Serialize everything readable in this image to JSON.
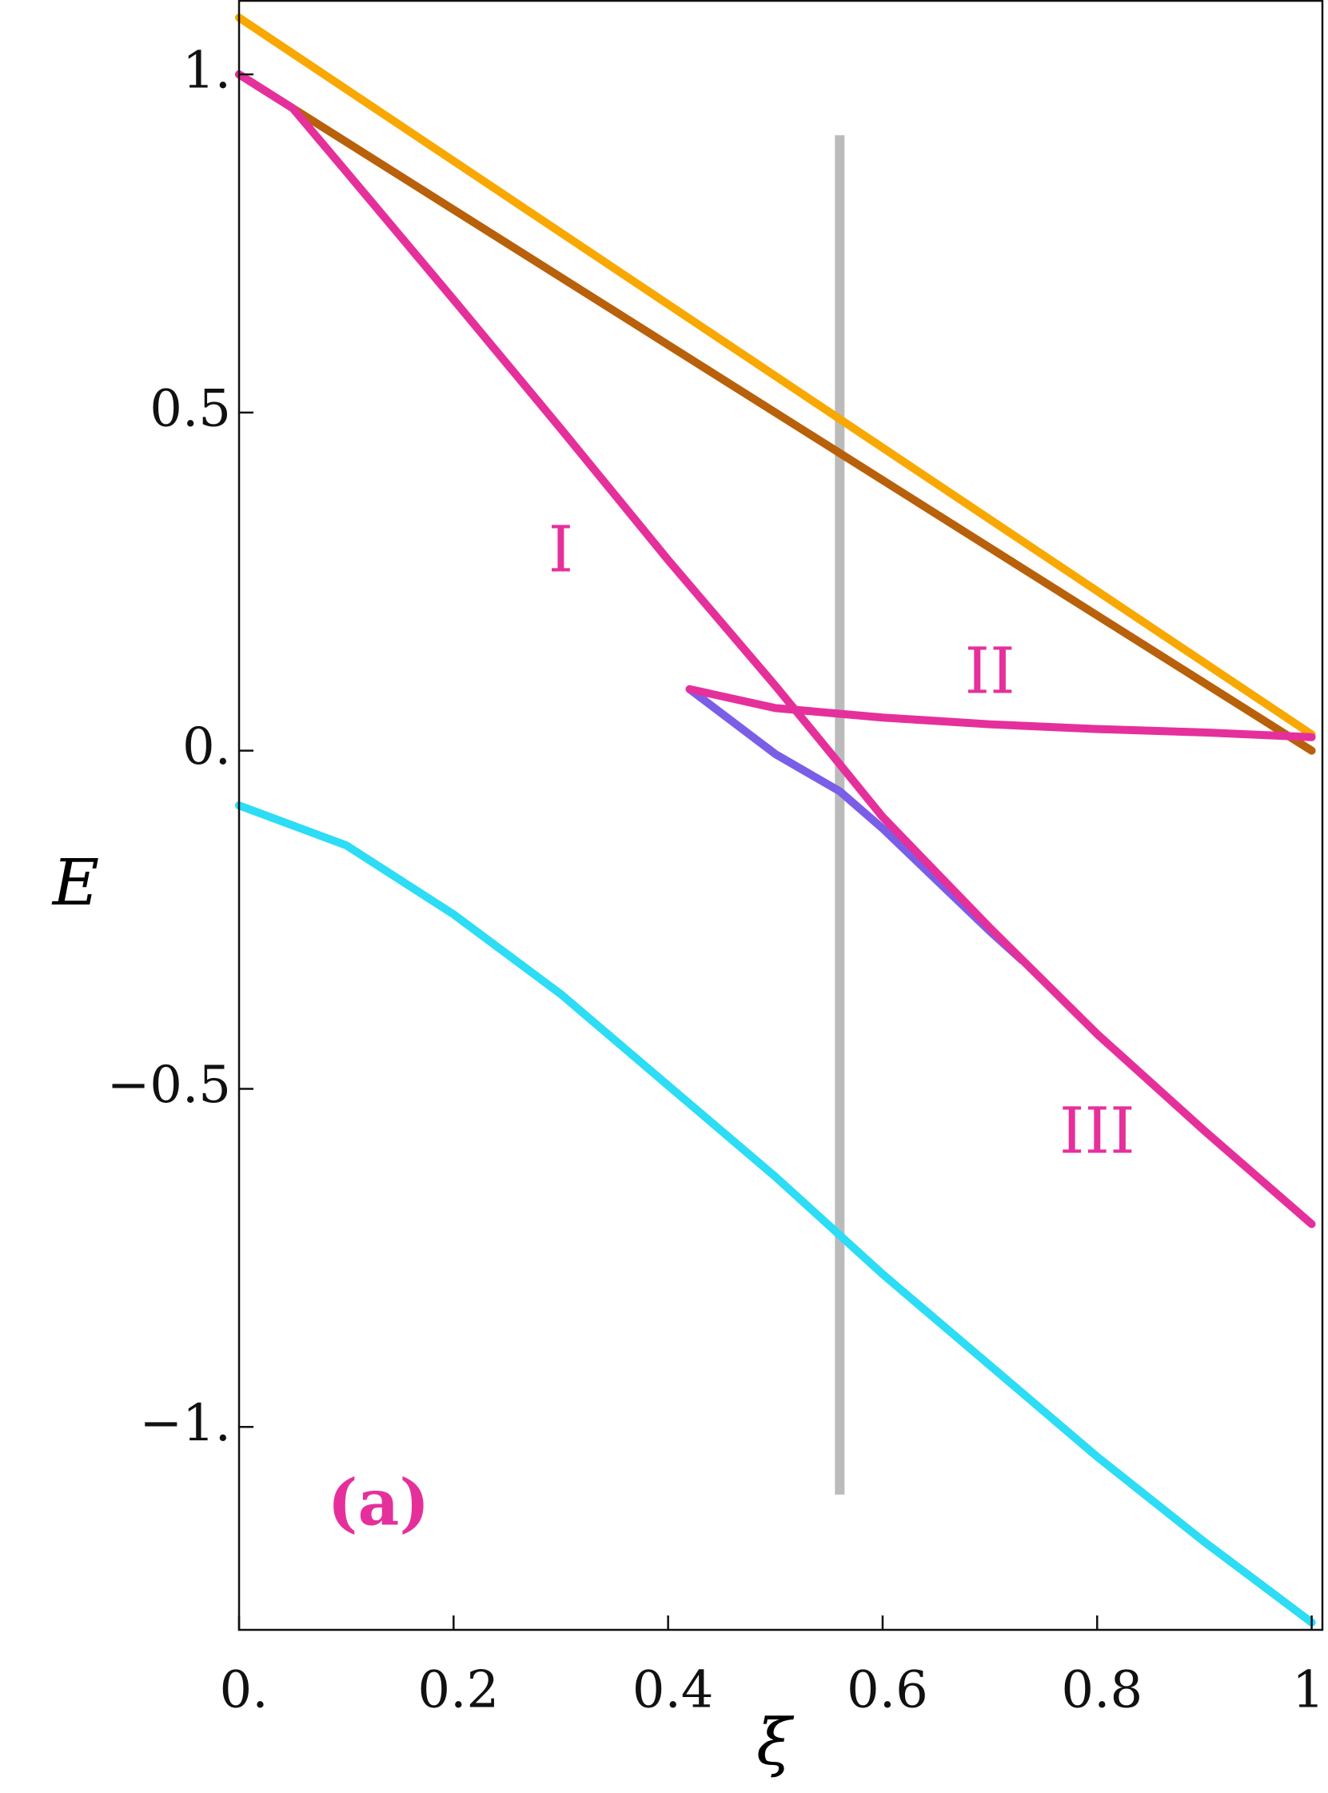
{
  "chart_data": {
    "type": "line",
    "xlabel": "ξ",
    "ylabel": "E",
    "xlim": [
      0,
      1.01
    ],
    "ylim": [
      -1.3,
      1.11
    ],
    "xticks": [
      {
        "value": 0,
        "label": "0."
      },
      0.2,
      0.4,
      0.6,
      0.8,
      {
        "value": 1,
        "label": "1."
      }
    ],
    "yticks": [
      {
        "value": -1,
        "label": "−1."
      },
      {
        "value": -0.5,
        "label": "−0.5"
      },
      {
        "value": 0,
        "label": "0."
      },
      0.5,
      {
        "value": 1,
        "label": "1."
      }
    ],
    "series": [
      {
        "color": "#f8a800",
        "x": [
          0,
          1
        ],
        "values": [
          1.084,
          0.024
        ]
      },
      {
        "color": "#b8600a",
        "x": [
          0,
          0.98,
          1
        ],
        "values": [
          1.0,
          0.02,
          0.0
        ]
      },
      {
        "color": "#7a5ee8",
        "x": [
          0.42,
          0.5,
          0.56,
          0.6,
          0.7,
          0.73
        ],
        "values": [
          0.091,
          -0.005,
          -0.06,
          -0.115,
          -0.267,
          -0.31
        ]
      },
      {
        "color": "#e5309c",
        "x": [
          0,
          0.05,
          0.1,
          0.2,
          0.3,
          0.4,
          0.5,
          0.56,
          0.6,
          0.7,
          0.8,
          0.9,
          1
        ],
        "values": [
          1.0,
          0.95,
          0.856,
          0.667,
          0.476,
          0.282,
          0.096,
          -0.02,
          -0.098,
          -0.262,
          -0.419,
          -0.562,
          -0.7
        ]
      },
      {
        "color": "#e5309c",
        "x": [
          0.42,
          0.5,
          0.6,
          0.7,
          0.8,
          0.9,
          1
        ],
        "values": [
          0.091,
          0.063,
          0.049,
          0.039,
          0.032,
          0.027,
          0.02
        ]
      },
      {
        "color": "#2ddcf5",
        "x": [
          0,
          0.1,
          0.2,
          0.3,
          0.4,
          0.5,
          0.6,
          0.7,
          0.8,
          0.9,
          1
        ],
        "values": [
          -0.081,
          -0.14,
          -0.242,
          -0.36,
          -0.495,
          -0.63,
          -0.774,
          -0.909,
          -1.044,
          -1.17,
          -1.289
        ]
      }
    ],
    "vline": {
      "x": 0.56,
      "range": [
        -1.1,
        0.91
      ],
      "color": "#aaaaaa"
    },
    "annotations": [
      "I",
      "II",
      "III",
      "(a)"
    ]
  }
}
